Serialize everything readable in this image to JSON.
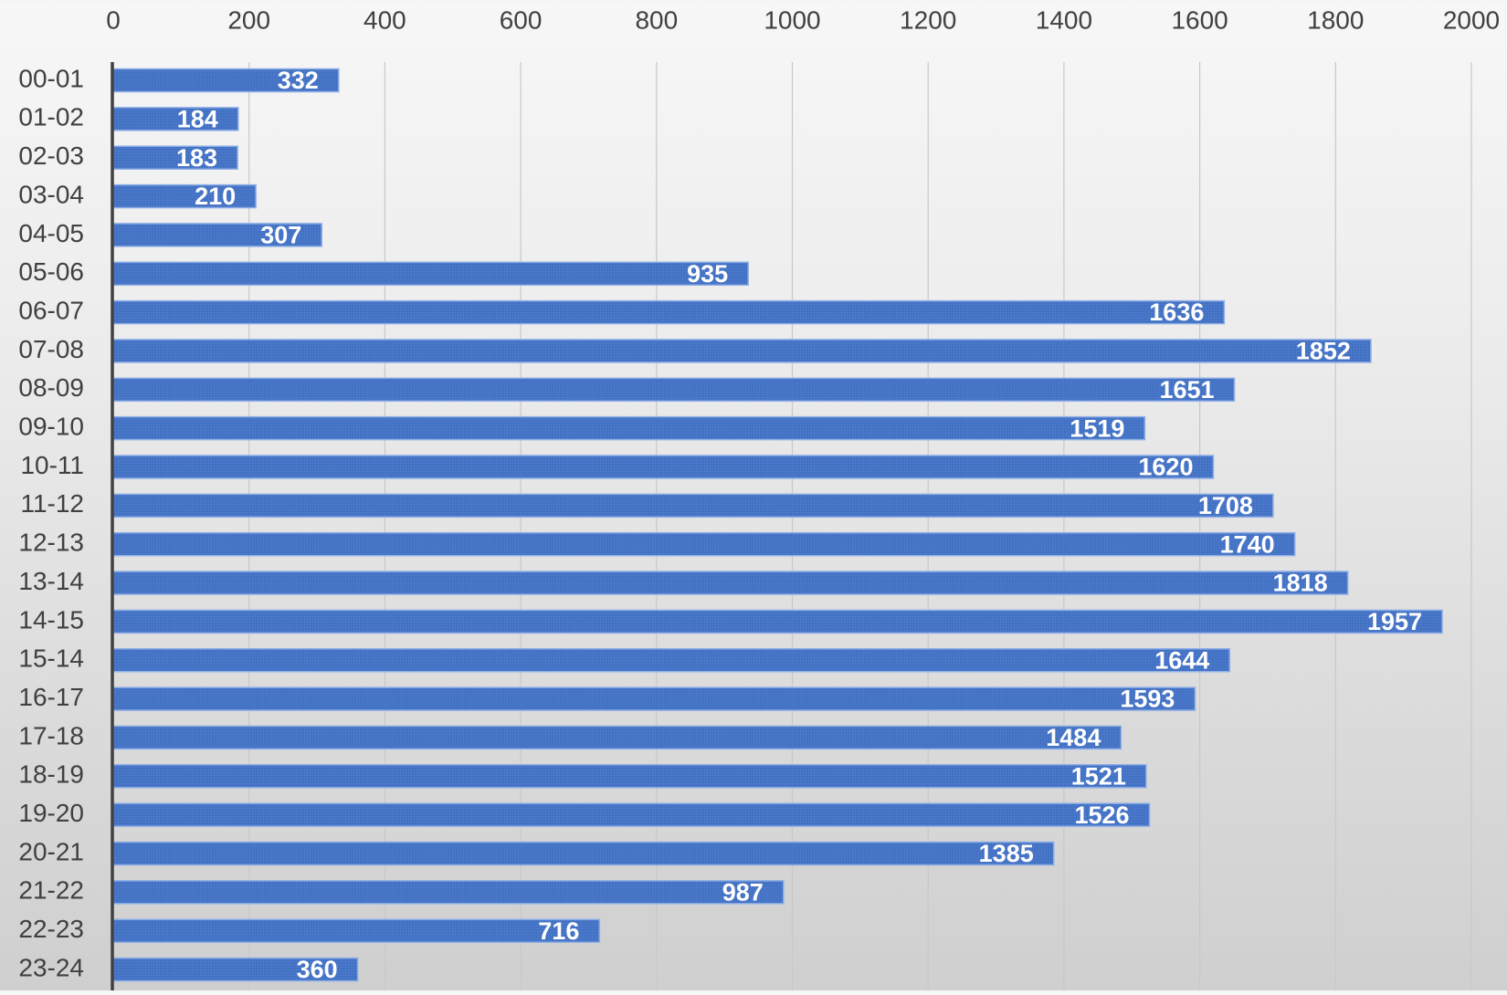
{
  "colors": {
    "bar": "#4472c4",
    "bar_stroke": "#8eaee6",
    "label_text": "#ffffff",
    "tick_text": "#404040",
    "grid": "#c8c8c8",
    "axis_line": "#404040"
  },
  "chart_data": {
    "type": "bar",
    "orientation": "horizontal",
    "title": "",
    "xlabel": "",
    "ylabel": "",
    "xlim": [
      0,
      2000
    ],
    "x_ticks": [
      "0",
      "200",
      "400",
      "600",
      "800",
      "1000",
      "1200",
      "1400",
      "1600",
      "1800",
      "2000"
    ],
    "x_axis_position": "top",
    "grid": true,
    "legend": "none",
    "data_labels": "inside-end",
    "categories": [
      "00-01",
      "01-02",
      "02-03",
      "03-04",
      "04-05",
      "05-06",
      "06-07",
      "07-08",
      "08-09",
      "09-10",
      "10-11",
      "11-12",
      "12-13",
      "13-14",
      "14-15",
      "15-14",
      "16-17",
      "17-18",
      "18-19",
      "19-20",
      "20-21",
      "21-22",
      "22-23",
      "23-24"
    ],
    "values": [
      332,
      184,
      183,
      210,
      307,
      935,
      1636,
      1852,
      1651,
      1519,
      1620,
      1708,
      1740,
      1818,
      1957,
      1644,
      1593,
      1484,
      1521,
      1526,
      1385,
      987,
      716,
      360
    ]
  }
}
